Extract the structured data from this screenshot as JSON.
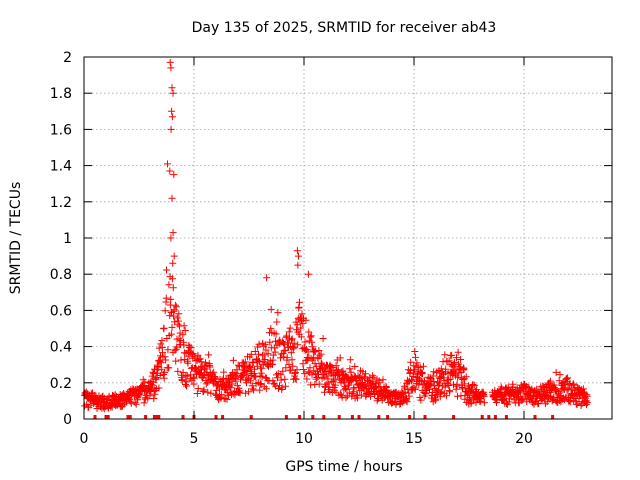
{
  "chart_data": {
    "type": "scatter",
    "title": "Day 135 of 2025, SRMTID for receiver ab43",
    "xlabel": "GPS time / hours",
    "ylabel": "SRMTID / TECUs",
    "xlim": [
      0,
      24
    ],
    "ylim": [
      0,
      2
    ],
    "xticks": [
      0,
      5,
      10,
      15,
      20
    ],
    "xtick_labels": [
      "0",
      "5",
      "10",
      "15",
      "20"
    ],
    "yticks": [
      0,
      0.2,
      0.4,
      0.6,
      0.8,
      1,
      1.2,
      1.4,
      1.6,
      1.8,
      2
    ],
    "ytick_labels": [
      "0",
      "0.2",
      "0.4",
      "0.6",
      "0.8",
      "1",
      "1.2",
      "1.4",
      "1.6",
      "1.8",
      "2"
    ],
    "grid": true,
    "marker": "+",
    "marker_color": "#ff0000",
    "envelope": {
      "description": "approximate typical (center) and upper-envelope SRMTID values vs time",
      "x": [
        0,
        0.5,
        1,
        1.5,
        2,
        2.5,
        3,
        3.3,
        3.6,
        3.8,
        4.0,
        4.2,
        4.5,
        5,
        5.5,
        6,
        6.5,
        7,
        7.5,
        8,
        8.5,
        9,
        9.5,
        9.8,
        10,
        10.5,
        11,
        11.5,
        12,
        12.5,
        13,
        13.5,
        14,
        14.5,
        15,
        15.5,
        16,
        16.5,
        17,
        17.5,
        18,
        18.5,
        19,
        19.5,
        20,
        20.5,
        21,
        21.5,
        22,
        22.5,
        22.9
      ],
      "center": [
        0.11,
        0.1,
        0.09,
        0.1,
        0.12,
        0.13,
        0.16,
        0.22,
        0.38,
        0.55,
        0.55,
        0.45,
        0.35,
        0.25,
        0.25,
        0.17,
        0.17,
        0.22,
        0.25,
        0.3,
        0.35,
        0.3,
        0.35,
        0.45,
        0.4,
        0.3,
        0.22,
        0.2,
        0.2,
        0.18,
        0.18,
        0.15,
        0.12,
        0.12,
        0.25,
        0.15,
        0.18,
        0.22,
        0.25,
        0.15,
        0.12,
        0.12,
        0.13,
        0.13,
        0.14,
        0.12,
        0.14,
        0.15,
        0.16,
        0.12,
        0.11
      ],
      "upper": [
        0.18,
        0.15,
        0.14,
        0.15,
        0.17,
        0.2,
        0.25,
        0.3,
        0.6,
        1.97,
        1.8,
        0.9,
        0.6,
        0.4,
        0.45,
        0.3,
        0.25,
        0.4,
        0.4,
        0.5,
        0.78,
        0.6,
        0.7,
        0.93,
        0.8,
        0.55,
        0.4,
        0.4,
        0.38,
        0.3,
        0.25,
        0.25,
        0.2,
        0.2,
        0.47,
        0.3,
        0.3,
        0.47,
        0.37,
        0.25,
        0.17,
        0.15,
        0.17,
        0.2,
        0.2,
        0.2,
        0.2,
        0.35,
        0.25,
        0.22,
        0.14
      ],
      "lower": [
        0.05,
        0.04,
        0.04,
        0.05,
        0.05,
        0.06,
        0.06,
        0.08,
        0.12,
        0.15,
        0.2,
        0.15,
        0.1,
        0.1,
        0.08,
        0.08,
        0.08,
        0.1,
        0.1,
        0.1,
        0.08,
        0.1,
        0.1,
        0.15,
        0.15,
        0.1,
        0.1,
        0.08,
        0.08,
        0.08,
        0.08,
        0.07,
        0.06,
        0.05,
        0.06,
        0.06,
        0.06,
        0.06,
        0.05,
        0.05,
        0.08,
        0.07,
        0.06,
        0.06,
        0.06,
        0.06,
        0.06,
        0.06,
        0.06,
        0.05,
        0.05
      ]
    },
    "zero_markers_x": [
      0.5,
      1.0,
      1.1,
      2.0,
      2.1,
      2.8,
      3.2,
      3.3,
      3.4,
      4.5,
      5.0,
      6.0,
      6.3,
      7.6,
      9.2,
      9.8,
      10.4,
      10.9,
      11.6,
      12.2,
      12.5,
      13.4,
      13.8,
      14.8,
      15.5,
      16.8,
      18.1,
      18.4,
      18.7,
      19.2,
      20.5,
      21.3
    ]
  }
}
